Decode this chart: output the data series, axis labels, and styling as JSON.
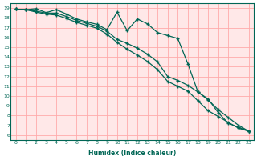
{
  "xlabel": "Humidex (Indice chaleur)",
  "bg_color": "#ffffff",
  "plot_bg_color": "#ffe8e8",
  "grid_color": "#ffaaaa",
  "line_color": "#006655",
  "spine_color": "#006655",
  "xlim": [
    -0.5,
    23.5
  ],
  "ylim": [
    5.5,
    19.5
  ],
  "xticks": [
    0,
    1,
    2,
    3,
    4,
    5,
    6,
    7,
    8,
    9,
    10,
    11,
    12,
    13,
    14,
    15,
    16,
    17,
    18,
    19,
    20,
    21,
    22,
    23
  ],
  "yticks": [
    6,
    7,
    8,
    9,
    10,
    11,
    12,
    13,
    14,
    15,
    16,
    17,
    18,
    19
  ],
  "line1_x": [
    0,
    1,
    2,
    3,
    4,
    5,
    6,
    7,
    8,
    9,
    10,
    11,
    12,
    13,
    14,
    15,
    16,
    17,
    18,
    19,
    20,
    21,
    22,
    23
  ],
  "line1_y": [
    18.9,
    18.85,
    18.95,
    18.55,
    18.85,
    18.4,
    17.9,
    17.6,
    17.35,
    16.8,
    18.6,
    16.7,
    17.9,
    17.4,
    16.5,
    16.2,
    15.9,
    13.3,
    10.4,
    9.7,
    8.3,
    7.2,
    6.8,
    6.4
  ],
  "line2_x": [
    0,
    1,
    2,
    3,
    4,
    5,
    6,
    7,
    8,
    9,
    10,
    11,
    12,
    13,
    14,
    15,
    16,
    17,
    18,
    19,
    20,
    21,
    22,
    23
  ],
  "line2_y": [
    18.9,
    18.85,
    18.7,
    18.5,
    18.5,
    18.15,
    17.75,
    17.45,
    17.15,
    16.65,
    15.8,
    15.4,
    14.9,
    14.3,
    13.5,
    12.0,
    11.6,
    11.1,
    10.4,
    9.6,
    8.6,
    7.8,
    7.0,
    6.4
  ],
  "line3_x": [
    0,
    1,
    2,
    3,
    4,
    5,
    6,
    7,
    8,
    9,
    10,
    11,
    12,
    13,
    14,
    15,
    16,
    17,
    18,
    19,
    20,
    21,
    22,
    23
  ],
  "line3_y": [
    18.9,
    18.85,
    18.6,
    18.4,
    18.3,
    17.95,
    17.55,
    17.25,
    16.95,
    16.35,
    15.5,
    14.8,
    14.2,
    13.55,
    12.7,
    11.5,
    11.0,
    10.5,
    9.5,
    8.5,
    7.9,
    7.3,
    6.7,
    6.4
  ]
}
